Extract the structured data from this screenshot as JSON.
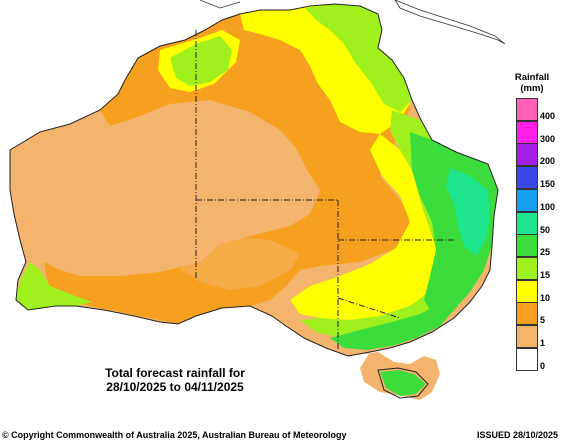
{
  "caption": {
    "line1": "Total forecast rainfall for",
    "line2": "28/10/2025 to 04/11/2025"
  },
  "legend": {
    "title_line1": "Rainfall",
    "title_line2": "(mm)",
    "items": [
      {
        "label": "400",
        "color": "#ff5fb4"
      },
      {
        "label": "300",
        "color": "#ff1fe6"
      },
      {
        "label": "200",
        "color": "#a61ee6"
      },
      {
        "label": "150",
        "color": "#3c48e6"
      },
      {
        "label": "100",
        "color": "#14a0f0"
      },
      {
        "label": "50",
        "color": "#1ee68c"
      },
      {
        "label": "25",
        "color": "#3cdc3c"
      },
      {
        "label": "15",
        "color": "#a0f01e"
      },
      {
        "label": "10",
        "color": "#ffff00"
      },
      {
        "label": "5",
        "color": "#f5a01e"
      },
      {
        "label": "1",
        "color": "#f5b46e"
      },
      {
        "label": "0",
        "color": "#ffffff"
      }
    ]
  },
  "footer": {
    "copyright": "© Copyright Commonwealth of Australia 2025, Australian Bureau of Meteorology",
    "issued": "ISSUED 28/10/2025"
  }
}
